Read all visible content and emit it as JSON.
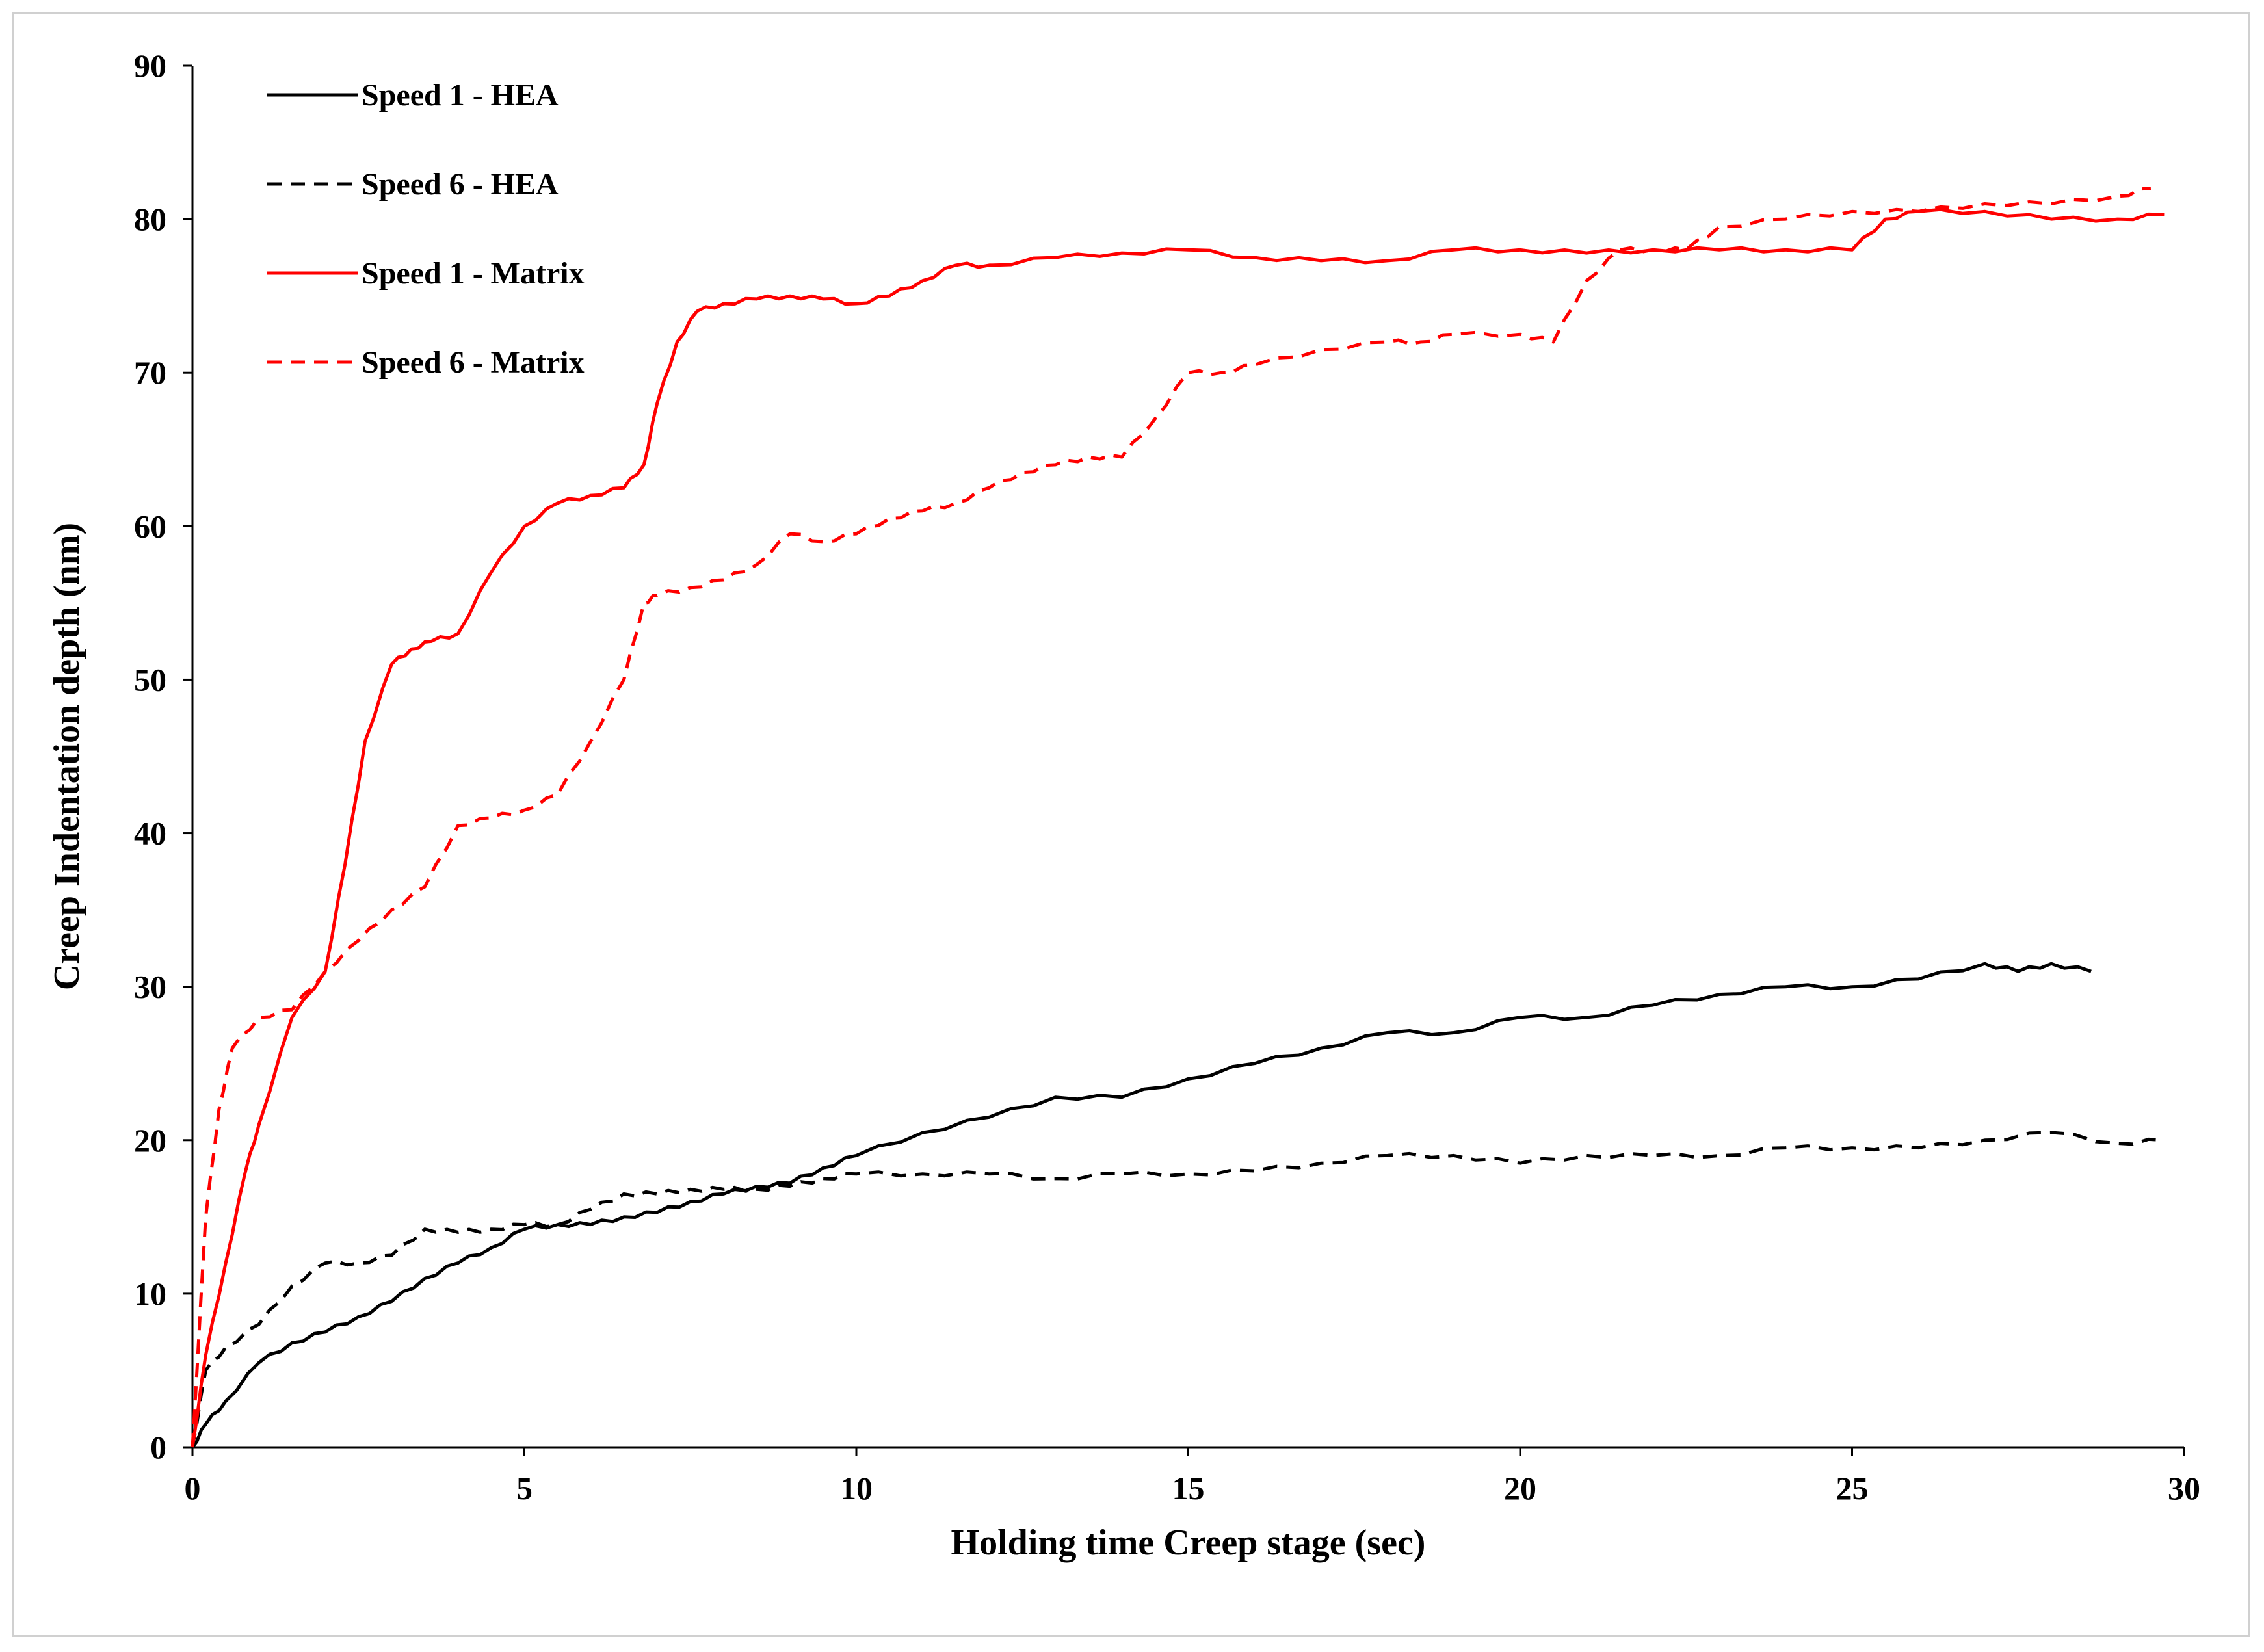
{
  "chart_data": {
    "type": "line",
    "title": "",
    "xlabel": "Holding time Creep stage (sec)",
    "ylabel": "Creep Indentation depth (nm)",
    "xlim": [
      0,
      30
    ],
    "ylim": [
      0,
      90
    ],
    "xticks": [
      0,
      5,
      10,
      15,
      20,
      25,
      30
    ],
    "yticks": [
      0,
      10,
      20,
      30,
      40,
      50,
      60,
      70,
      80,
      90
    ],
    "grid": false,
    "legend_position": "top-left",
    "series": [
      {
        "name": "Speed 1 - HEA",
        "color": "#000000",
        "dash": "solid",
        "x": [
          0,
          0.2,
          0.5,
          1,
          1.5,
          2,
          2.5,
          3,
          3.5,
          4,
          4.5,
          5,
          5.5,
          6,
          6.5,
          7,
          7.5,
          8,
          8.5,
          9,
          9.5,
          10,
          11,
          12,
          13,
          14,
          15,
          16,
          17,
          18,
          19,
          20,
          21,
          22,
          23,
          24,
          25,
          26,
          27,
          27.5,
          28,
          28.6
        ],
        "values": [
          0,
          1.5,
          3,
          5.5,
          6.8,
          7.5,
          8.5,
          9.5,
          11,
          12,
          13,
          14.2,
          14.5,
          14.5,
          15,
          15.3,
          16,
          16.5,
          17,
          17.2,
          18.2,
          19,
          20.5,
          21.5,
          22.8,
          22.8,
          24,
          25,
          26,
          27,
          27,
          28,
          28,
          28.8,
          29.5,
          30,
          30,
          30.5,
          31.5,
          31,
          31.5,
          31
        ]
      },
      {
        "name": "Speed 6 - HEA",
        "color": "#000000",
        "dash": "dashed",
        "x": [
          0,
          0.2,
          0.5,
          1,
          1.5,
          2,
          2.5,
          3,
          3.5,
          4,
          4.5,
          5,
          5.5,
          6,
          6.5,
          7,
          7.5,
          8,
          8.5,
          9,
          9.5,
          10,
          11,
          12,
          13,
          14,
          15,
          16,
          17,
          18,
          19,
          20,
          21,
          22,
          23,
          24,
          25,
          26,
          27,
          28,
          29,
          29.7
        ],
        "values": [
          0,
          5,
          6.5,
          8,
          10.5,
          12,
          12,
          12.5,
          14.2,
          14,
          14.2,
          14.5,
          14.5,
          15.5,
          16.5,
          16.5,
          16.8,
          16.8,
          16.8,
          17,
          17.5,
          17.8,
          17.8,
          17.8,
          17.5,
          17.8,
          17.8,
          18,
          18.5,
          19,
          19,
          18.5,
          19,
          19,
          19,
          19.5,
          19.5,
          19.5,
          20,
          20.5,
          19.8,
          20
        ]
      },
      {
        "name": "Speed 1 - Matrix",
        "color": "#ff0000",
        "dash": "solid",
        "x": [
          0,
          0.2,
          0.5,
          0.8,
          1,
          1.5,
          2,
          2.3,
          2.6,
          3,
          3.3,
          3.6,
          4,
          4.5,
          5,
          5.5,
          6,
          6.5,
          6.8,
          7,
          7.3,
          7.6,
          8,
          8.5,
          9,
          9.5,
          10,
          10.5,
          11,
          11.5,
          12,
          13,
          14,
          15,
          16,
          17,
          18,
          19,
          20,
          21,
          22,
          23,
          24,
          25,
          25.5,
          26,
          27,
          28,
          29,
          29.7
        ],
        "values": [
          0,
          6,
          12,
          18,
          21,
          28,
          31,
          38,
          46,
          51,
          52,
          52.5,
          53,
          57,
          60,
          61.5,
          62,
          62.5,
          64,
          68,
          72,
          74,
          74.5,
          74.8,
          75,
          74.8,
          74.5,
          75,
          76,
          77,
          77,
          77.5,
          77.8,
          78,
          77.5,
          77.3,
          77.3,
          78,
          78,
          77.8,
          78,
          78,
          78,
          78,
          80,
          80.5,
          80.5,
          80,
          80,
          80.3
        ]
      },
      {
        "name": "Speed 6 - Matrix",
        "color": "#ff0000",
        "dash": "dashed",
        "x": [
          0,
          0.2,
          0.4,
          0.6,
          1,
          1.5,
          2,
          2.5,
          3,
          3.5,
          4,
          4.5,
          5,
          5.5,
          6,
          6.5,
          6.8,
          7,
          7.5,
          8,
          8.5,
          9,
          9.5,
          10,
          10.5,
          11,
          11.5,
          12,
          12.5,
          13,
          13.5,
          14,
          14.5,
          15,
          15.5,
          16,
          17,
          18,
          18.5,
          19,
          20,
          20.5,
          21,
          21.5,
          22,
          22.5,
          23,
          24,
          25,
          26,
          27,
          28,
          29,
          29.5
        ],
        "values": [
          0,
          15,
          22,
          26,
          28,
          28.5,
          31,
          33,
          35,
          36.5,
          40.5,
          41,
          41.5,
          42.5,
          46,
          50,
          55,
          55.5,
          56,
          56.5,
          57.5,
          59.5,
          59,
          59.5,
          60.5,
          61,
          61.5,
          62.5,
          63.5,
          64,
          64.5,
          64.5,
          67,
          70,
          70,
          70.5,
          71.5,
          72,
          72,
          72.5,
          72.5,
          72,
          76,
          78,
          78,
          78,
          79.5,
          80,
          80.5,
          80.5,
          81,
          81,
          81.5,
          82
        ]
      }
    ]
  }
}
